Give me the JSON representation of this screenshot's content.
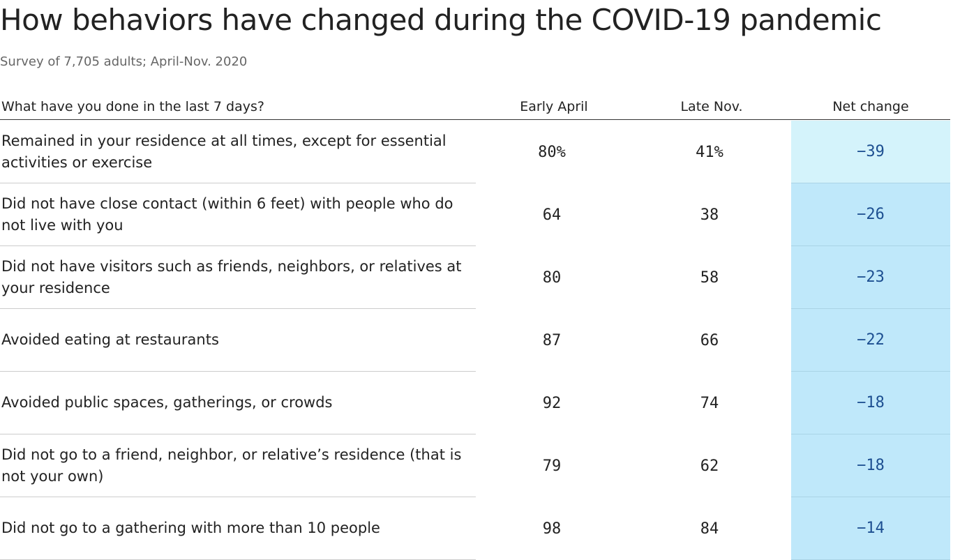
{
  "header": {
    "title": "How behaviors have changed during the COVID-19 pandemic",
    "subtitle": "Survey of 7,705 adults; April-Nov. 2020"
  },
  "table": {
    "columns": [
      "What have you done in the last 7 days?",
      "Early April",
      "Late Nov.",
      "Net change"
    ],
    "rows": [
      [
        "Remained in your residence at all times, except for essential activities or exercise",
        "80%",
        "41%",
        "−39"
      ],
      [
        "Did not have close contact (within 6 feet) with people who do not live with you",
        "64",
        "38",
        "−26"
      ],
      [
        "Did not have visitors such as friends, neighbors, or relatives at your residence",
        "80",
        "58",
        "−23"
      ],
      [
        "Avoided eating at restaurants",
        "87",
        "66",
        "−22"
      ],
      [
        "Avoided public spaces, gatherings, or crowds",
        "92",
        "74",
        "−18"
      ],
      [
        "Did not go to a friend, neighbor, or relative’s residence (that is not your own)",
        "79",
        "62",
        "−18"
      ],
      [
        "Did not go to a gathering with more than 10 people",
        "98",
        "84",
        "−14"
      ]
    ]
  }
}
